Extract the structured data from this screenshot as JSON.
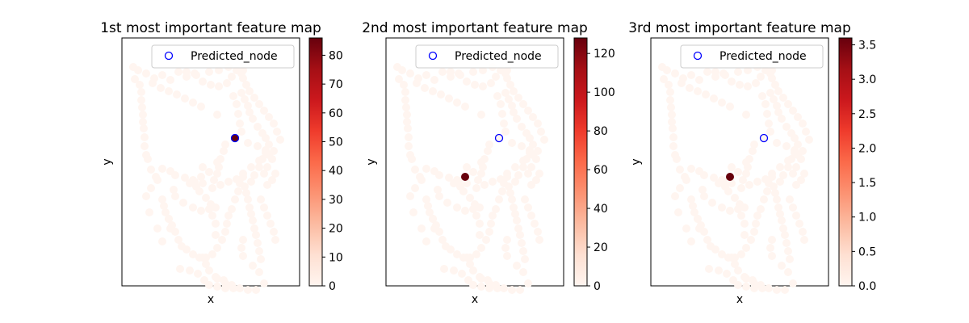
{
  "colors": {
    "node_min": "#fff5f0",
    "node_max": "#67000d",
    "predicted_marker": "#0000ff",
    "axes": "#000000"
  },
  "colormap": "Reds",
  "predicted_label": "Predicted_node",
  "chart_data": [
    {
      "type": "scatter",
      "title": "1st most important feature map",
      "xlabel": "x",
      "ylabel": "y",
      "colorbar": {
        "range": [
          0,
          86
        ],
        "ticks": [
          "0",
          "10",
          "20",
          "30",
          "40",
          "50",
          "60",
          "70",
          "80"
        ]
      },
      "highlight_node": {
        "index": 22,
        "value": 86
      },
      "predicted_node_index": 22,
      "legend_position": "upper-right"
    },
    {
      "type": "scatter",
      "title": "2nd most important feature map",
      "xlabel": "x",
      "ylabel": "y",
      "colorbar": {
        "range": [
          0,
          128
        ],
        "ticks": [
          "0",
          "20",
          "40",
          "60",
          "80",
          "100",
          "120"
        ]
      },
      "highlight_node": {
        "index": 42,
        "value": 128
      },
      "predicted_node_index": 22,
      "legend_position": "upper-right"
    },
    {
      "type": "scatter",
      "title": "3rd most important feature map",
      "xlabel": "x",
      "ylabel": "y",
      "colorbar": {
        "range": [
          0,
          3.6
        ],
        "ticks": [
          "0.0",
          "0.5",
          "1.0",
          "1.5",
          "2.0",
          "2.5",
          "3.0",
          "3.5"
        ]
      },
      "highlight_node": {
        "index": 42,
        "value": 3.6
      },
      "predicted_node_index": 22,
      "legend_position": "upper-right"
    }
  ]
}
